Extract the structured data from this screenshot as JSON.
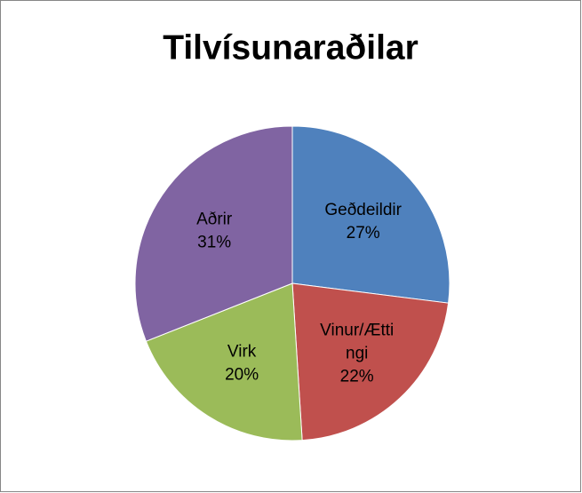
{
  "chart_data": {
    "type": "pie",
    "title": "Tilvísunaraðilar",
    "categories": [
      "Geðdeildir",
      "Vinur/Ættingi",
      "Virk",
      "Aðrir"
    ],
    "values": [
      27,
      22,
      20,
      31
    ],
    "value_labels": [
      "27%",
      "22%",
      "20%",
      "31%"
    ],
    "colors": [
      "#4f81bd",
      "#c0504d",
      "#9bbb59",
      "#8064a2"
    ]
  }
}
